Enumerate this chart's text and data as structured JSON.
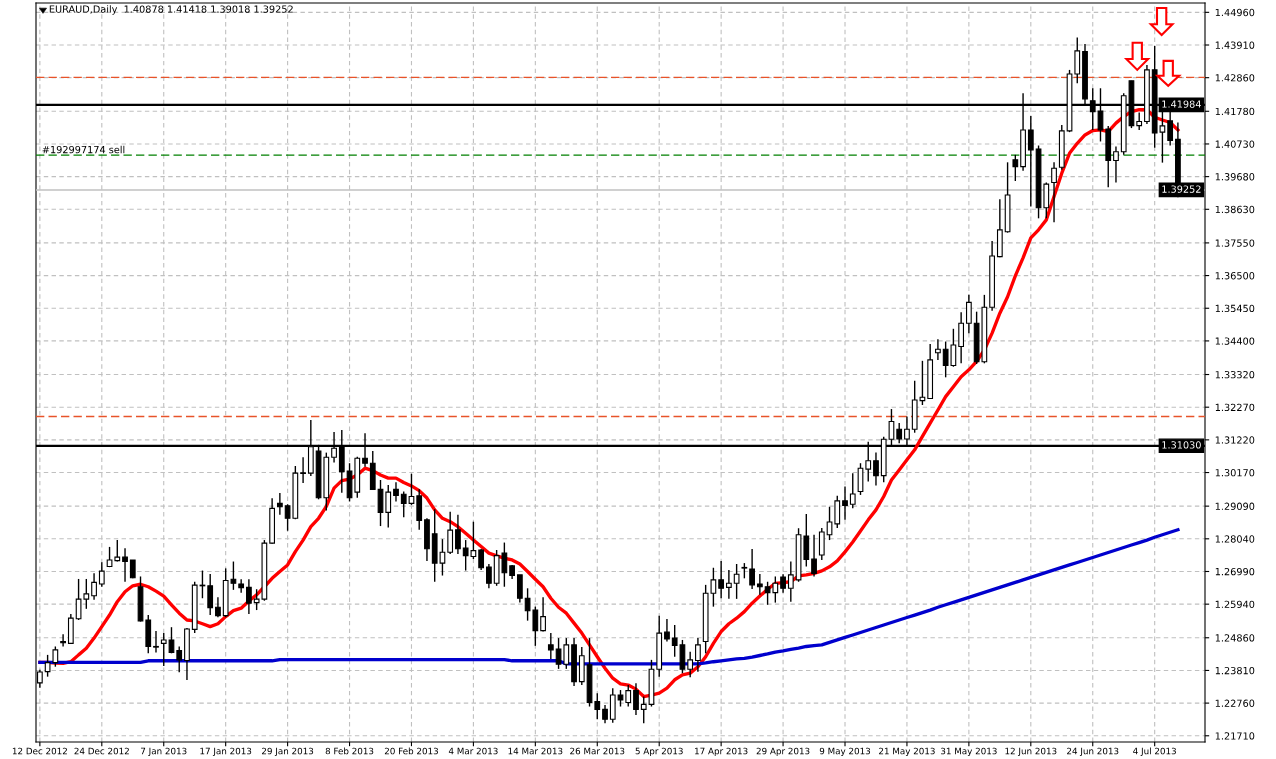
{
  "chart_data": {
    "type": "candlestick",
    "title": "EURAUD,Daily  1.40878 1.41418 1.39018 1.39252",
    "categories": [
      "12 Dec 2012",
      null,
      null,
      null,
      null,
      null,
      null,
      null,
      "24 Dec 2012",
      null,
      null,
      null,
      null,
      null,
      null,
      null,
      "7 Jan 2013",
      null,
      null,
      null,
      null,
      null,
      null,
      null,
      "17 Jan 2013",
      null,
      null,
      null,
      null,
      null,
      null,
      null,
      "29 Jan 2013",
      null,
      null,
      null,
      null,
      null,
      null,
      null,
      "8 Feb 2013",
      null,
      null,
      null,
      null,
      null,
      null,
      null,
      "20 Feb 2013",
      null,
      null,
      null,
      null,
      null,
      null,
      null,
      "4 Mar 2013",
      null,
      null,
      null,
      null,
      null,
      null,
      null,
      "14 Mar 2013",
      null,
      null,
      null,
      null,
      null,
      null,
      null,
      "26 Mar 2013",
      null,
      null,
      null,
      null,
      null,
      null,
      null,
      "5 Apr 2013",
      null,
      null,
      null,
      null,
      null,
      null,
      null,
      "17 Apr 2013",
      null,
      null,
      null,
      null,
      null,
      null,
      null,
      "29 Apr 2013",
      null,
      null,
      null,
      null,
      null,
      null,
      null,
      "9 May 2013",
      null,
      null,
      null,
      null,
      null,
      null,
      null,
      "21 May 2013",
      null,
      null,
      null,
      null,
      null,
      null,
      null,
      "31 May 2013",
      null,
      null,
      null,
      null,
      null,
      null,
      null,
      "12 Jun 2013",
      null,
      null,
      null,
      null,
      null,
      null,
      null,
      "24 Jun 2013",
      null,
      null,
      null,
      null,
      null,
      null,
      null,
      "4 Jul 2013",
      null,
      null,
      null
    ],
    "ohlc": [
      [
        1.2341,
        1.2383,
        1.2325,
        1.2376
      ],
      [
        1.2377,
        1.2431,
        1.2361,
        1.2406
      ],
      [
        1.2406,
        1.2458,
        1.2393,
        1.2447
      ],
      [
        1.2474,
        1.2497,
        1.2458,
        1.247
      ],
      [
        1.2468,
        1.2562,
        1.2466,
        1.2549
      ],
      [
        1.2547,
        1.2675,
        1.2543,
        1.261
      ],
      [
        1.261,
        1.2675,
        1.2579,
        1.2627
      ],
      [
        1.2621,
        1.2693,
        1.2608,
        1.2664
      ],
      [
        1.2659,
        1.2729,
        1.265,
        1.27
      ],
      [
        1.2715,
        1.2778,
        1.2713,
        1.2736
      ],
      [
        1.2734,
        1.28,
        1.2731,
        1.2745
      ],
      [
        1.2745,
        1.2774,
        1.2666,
        1.2731
      ],
      [
        1.2736,
        1.2736,
        1.2677,
        1.2679
      ],
      [
        1.265,
        1.2683,
        1.2538,
        1.254
      ],
      [
        1.2543,
        1.2559,
        1.2436,
        1.2458
      ],
      [
        1.2458,
        1.2508,
        1.2439,
        1.2456
      ],
      [
        1.2468,
        1.2501,
        1.2395,
        1.2479
      ],
      [
        1.2479,
        1.252,
        1.2436,
        1.2439
      ],
      [
        1.2445,
        1.2458,
        1.2375,
        1.2415
      ],
      [
        1.2413,
        1.2517,
        1.235,
        1.2514
      ],
      [
        1.2513,
        1.2666,
        1.2501,
        1.2655
      ],
      [
        1.2653,
        1.2702,
        1.2613,
        1.2655
      ],
      [
        1.2653,
        1.2691,
        1.2559,
        1.2583
      ],
      [
        1.2584,
        1.2616,
        1.2552,
        1.2557
      ],
      [
        1.2557,
        1.2709,
        1.2552,
        1.267
      ],
      [
        1.2674,
        1.2731,
        1.264,
        1.2661
      ],
      [
        1.2659,
        1.2674,
        1.2631,
        1.2647
      ],
      [
        1.2648,
        1.2674,
        1.2562,
        1.2597
      ],
      [
        1.2599,
        1.2642,
        1.2575,
        1.261
      ],
      [
        1.261,
        1.28,
        1.2605,
        1.279
      ],
      [
        1.279,
        1.2934,
        1.2788,
        1.2902
      ],
      [
        1.2918,
        1.2951,
        1.2881,
        1.2907
      ],
      [
        1.291,
        1.2915,
        1.283,
        1.287
      ],
      [
        1.287,
        1.3038,
        1.2867,
        1.3015
      ],
      [
        1.3016,
        1.3066,
        1.2983,
        1.3014
      ],
      [
        1.3015,
        1.3186,
        1.3006,
        1.31
      ],
      [
        1.3086,
        1.3106,
        1.2931,
        1.2936
      ],
      [
        1.2936,
        1.3081,
        1.2895,
        1.3066
      ],
      [
        1.3066,
        1.3147,
        1.3049,
        1.3095
      ],
      [
        1.31,
        1.3154,
        1.2952,
        1.302
      ],
      [
        1.3022,
        1.3047,
        1.2924,
        1.2936
      ],
      [
        1.2954,
        1.3068,
        1.2936,
        1.3063
      ],
      [
        1.3063,
        1.3143,
        1.3036,
        1.3047
      ],
      [
        1.3047,
        1.3086,
        1.2961,
        1.2963
      ],
      [
        1.2963,
        1.2993,
        1.2845,
        1.2889
      ],
      [
        1.2889,
        1.2977,
        1.284,
        1.2954
      ],
      [
        1.2963,
        1.2986,
        1.2924,
        1.2943
      ],
      [
        1.2947,
        1.2956,
        1.2873,
        1.2918
      ],
      [
        1.2918,
        1.3013,
        1.2913,
        1.294
      ],
      [
        1.2942,
        1.2963,
        1.2833,
        1.2863
      ],
      [
        1.2865,
        1.287,
        1.2733,
        1.2772
      ],
      [
        1.282,
        1.2899,
        1.2666,
        1.2726
      ],
      [
        1.2726,
        1.2803,
        1.2686,
        1.2761
      ],
      [
        1.2761,
        1.2891,
        1.2755,
        1.2832
      ],
      [
        1.2833,
        1.2881,
        1.2755,
        1.2772
      ],
      [
        1.2774,
        1.28,
        1.2702,
        1.275
      ],
      [
        1.2747,
        1.2859,
        1.2739,
        1.2766
      ],
      [
        1.2768,
        1.2771,
        1.2704,
        1.2711
      ],
      [
        1.2713,
        1.2723,
        1.2645,
        1.2661
      ],
      [
        1.2661,
        1.2768,
        1.2653,
        1.275
      ],
      [
        1.2758,
        1.2792,
        1.265,
        1.2695
      ],
      [
        1.2717,
        1.272,
        1.2675,
        1.2686
      ],
      [
        1.2688,
        1.2688,
        1.2599,
        1.2613
      ],
      [
        1.2613,
        1.2645,
        1.2541,
        1.2573
      ],
      [
        1.2575,
        1.2586,
        1.246,
        1.2509
      ],
      [
        1.2509,
        1.2616,
        1.2506,
        1.2554
      ],
      [
        1.2463,
        1.2501,
        1.2418,
        1.2447
      ],
      [
        1.245,
        1.2485,
        1.2386,
        1.2401
      ],
      [
        1.2401,
        1.2485,
        1.2386,
        1.2463
      ],
      [
        1.2463,
        1.2485,
        1.2331,
        1.2345
      ],
      [
        1.2345,
        1.2456,
        1.2334,
        1.2428
      ],
      [
        1.2399,
        1.2485,
        1.2265,
        1.2278
      ],
      [
        1.2281,
        1.2308,
        1.2224,
        1.2256
      ],
      [
        1.2256,
        1.227,
        1.2211,
        1.2224
      ],
      [
        1.2224,
        1.2324,
        1.2213,
        1.2302
      ],
      [
        1.2302,
        1.2318,
        1.2265,
        1.2286
      ],
      [
        1.2278,
        1.2334,
        1.2265,
        1.2316
      ],
      [
        1.2316,
        1.234,
        1.2238,
        1.2256
      ],
      [
        1.2256,
        1.2297,
        1.2211,
        1.2272
      ],
      [
        1.2272,
        1.2415,
        1.2265,
        1.2385
      ],
      [
        1.2385,
        1.2557,
        1.2361,
        1.2501
      ],
      [
        1.2504,
        1.2546,
        1.2474,
        1.2482
      ],
      [
        1.2485,
        1.2527,
        1.2425,
        1.2461
      ],
      [
        1.2463,
        1.2479,
        1.2372,
        1.2385
      ],
      [
        1.2385,
        1.2441,
        1.2359,
        1.2415
      ],
      [
        1.2413,
        1.2485,
        1.2377,
        1.2463
      ],
      [
        1.2474,
        1.2656,
        1.2436,
        1.2629
      ],
      [
        1.2629,
        1.2711,
        1.2586,
        1.2672
      ],
      [
        1.2672,
        1.2733,
        1.2613,
        1.2645
      ],
      [
        1.2648,
        1.2704,
        1.2611,
        1.2661
      ],
      [
        1.2661,
        1.2723,
        1.2611,
        1.269
      ],
      [
        1.2712,
        1.2726,
        1.2677,
        1.271
      ],
      [
        1.2707,
        1.2771,
        1.2643,
        1.2656
      ],
      [
        1.2659,
        1.2691,
        1.2624,
        1.265
      ],
      [
        1.265,
        1.2666,
        1.2592,
        1.2631
      ],
      [
        1.2631,
        1.2683,
        1.2599,
        1.2661
      ],
      [
        1.2681,
        1.269,
        1.2631,
        1.2645
      ],
      [
        1.2645,
        1.2731,
        1.2602,
        1.2688
      ],
      [
        1.2672,
        1.2838,
        1.2666,
        1.2817
      ],
      [
        1.2813,
        1.2884,
        1.2715,
        1.2738
      ],
      [
        1.2739,
        1.2817,
        1.2683,
        1.2693
      ],
      [
        1.2752,
        1.2839,
        1.2736,
        1.2826
      ],
      [
        1.2817,
        1.2907,
        1.28,
        1.2858
      ],
      [
        1.2852,
        1.2942,
        1.2839,
        1.2926
      ],
      [
        1.2926,
        1.2972,
        1.2865,
        1.2911
      ],
      [
        1.2915,
        1.3015,
        1.2902,
        1.2948
      ],
      [
        1.2956,
        1.3047,
        1.2945,
        1.3031
      ],
      [
        1.3028,
        1.3116,
        1.2988,
        1.3055
      ],
      [
        1.3055,
        1.3081,
        1.2975,
        1.3007
      ],
      [
        1.3007,
        1.3132,
        1.2986,
        1.3124
      ],
      [
        1.3124,
        1.3221,
        1.31,
        1.3181
      ],
      [
        1.3156,
        1.3176,
        1.3111,
        1.3125
      ],
      [
        1.3125,
        1.3197,
        1.31,
        1.3156
      ],
      [
        1.3156,
        1.3312,
        1.3145,
        1.325
      ],
      [
        1.3248,
        1.3376,
        1.3234,
        1.3259
      ],
      [
        1.3255,
        1.343,
        1.3253,
        1.3379
      ],
      [
        1.3402,
        1.3445,
        1.3379,
        1.3413
      ],
      [
        1.3413,
        1.3438,
        1.3323,
        1.3361
      ],
      [
        1.3361,
        1.3479,
        1.3357,
        1.3427
      ],
      [
        1.3422,
        1.3532,
        1.3368,
        1.3497
      ],
      [
        1.3497,
        1.3588,
        1.3465,
        1.3564
      ],
      [
        1.3497,
        1.3534,
        1.3366,
        1.3373
      ],
      [
        1.3373,
        1.3588,
        1.3368,
        1.3548
      ],
      [
        1.3548,
        1.3761,
        1.3537,
        1.3713
      ],
      [
        1.3711,
        1.3895,
        1.3709,
        1.3797
      ],
      [
        1.3791,
        1.4014,
        1.3788,
        1.3909
      ],
      [
        1.4022,
        1.4038,
        1.3954,
        1.4
      ],
      [
        1.4,
        1.4236,
        1.3987,
        1.4118
      ],
      [
        1.4118,
        1.4163,
        1.3872,
        1.4054
      ],
      [
        1.4057,
        1.4068,
        1.3834,
        1.3868
      ],
      [
        1.3868,
        1.3949,
        1.3834,
        1.3944
      ],
      [
        1.3949,
        1.4014,
        1.3821,
        1.3995
      ],
      [
        1.3998,
        1.4134,
        1.399,
        1.4115
      ],
      [
        1.4115,
        1.4311,
        1.4111,
        1.4298
      ],
      [
        1.4298,
        1.4415,
        1.4268,
        1.4372
      ],
      [
        1.437,
        1.4394,
        1.4201,
        1.4218
      ],
      [
        1.4212,
        1.4252,
        1.4118,
        1.4177
      ],
      [
        1.4179,
        1.4252,
        1.4081,
        1.4118
      ],
      [
        1.4121,
        1.4131,
        1.3934,
        1.402
      ],
      [
        1.402,
        1.4065,
        1.3949,
        1.4048
      ],
      [
        1.4048,
        1.4236,
        1.4038,
        1.4228
      ],
      [
        1.4276,
        1.4276,
        1.4124,
        1.4132
      ],
      [
        1.4132,
        1.4174,
        1.4118,
        1.4145
      ],
      [
        1.4145,
        1.4327,
        1.4137,
        1.4311
      ],
      [
        1.4311,
        1.4388,
        1.4061,
        1.4108
      ],
      [
        1.4111,
        1.4193,
        1.4013,
        1.4131
      ],
      [
        1.4147,
        1.4177,
        1.4068,
        1.4084
      ],
      [
        1.40878,
        1.41418,
        1.39018,
        1.39252
      ]
    ],
    "series": [
      {
        "type": "line",
        "color": "#ff0000",
        "values": [
          1.2407,
          1.2407,
          1.2405,
          1.2404,
          1.2409,
          1.2431,
          1.2452,
          1.2485,
          1.2522,
          1.2559,
          1.2602,
          1.2634,
          1.2653,
          1.2658,
          1.265,
          1.2636,
          1.262,
          1.2592,
          1.2565,
          1.2543,
          1.254,
          1.2531,
          1.2522,
          1.2531,
          1.2554,
          1.2573,
          1.2581,
          1.2604,
          1.2624,
          1.265,
          1.2677,
          1.2699,
          1.272,
          1.2763,
          1.28,
          1.2843,
          1.287,
          1.2908,
          1.2967,
          1.2991,
          1.2996,
          1.3009,
          1.3031,
          1.3023,
          1.3009,
          1.2999,
          1.2999,
          1.2985,
          1.2974,
          1.2959,
          1.2935,
          1.2897,
          1.287,
          1.2859,
          1.2843,
          1.2822,
          1.28,
          1.2779,
          1.2758,
          1.2749,
          1.2742,
          1.2736,
          1.2723,
          1.2699,
          1.2674,
          1.265,
          1.2613,
          1.2584,
          1.2565,
          1.2533,
          1.2501,
          1.2463,
          1.2425,
          1.2388,
          1.2356,
          1.2338,
          1.2334,
          1.2321,
          1.2297,
          1.2302,
          1.2308,
          1.2324,
          1.2351,
          1.2367,
          1.2372,
          1.2393,
          1.2425,
          1.2468,
          1.2506,
          1.2531,
          1.2549,
          1.257,
          1.2597,
          1.262,
          1.2642,
          1.2661,
          1.2663,
          1.2666,
          1.2685,
          1.2688,
          1.2693,
          1.2701,
          1.2714,
          1.2733,
          1.2762,
          1.2794,
          1.2829,
          1.2865,
          1.2897,
          1.294,
          1.2993,
          1.3025,
          1.3058,
          1.309,
          1.3133,
          1.3176,
          1.3218,
          1.3261,
          1.3293,
          1.3325,
          1.3347,
          1.3374,
          1.3411,
          1.3465,
          1.3529,
          1.3582,
          1.3649,
          1.3707,
          1.3771,
          1.3797,
          1.3829,
          1.3904,
          1.3979,
          1.4043,
          1.4075,
          1.4102,
          1.4116,
          1.4118,
          1.4113,
          1.414,
          1.4161,
          1.4177,
          1.4183,
          1.4183,
          1.4159,
          1.415,
          1.4142,
          1.4118
        ]
      },
      {
        "type": "line",
        "color": "#0000cd",
        "values": [
          1.2407,
          1.2407,
          1.2407,
          1.2407,
          1.2407,
          1.2407,
          1.2407,
          1.2407,
          1.2407,
          1.2407,
          1.2407,
          1.2407,
          1.2407,
          1.2407,
          1.2412,
          1.2412,
          1.2412,
          1.2412,
          1.2412,
          1.2412,
          1.2412,
          1.2412,
          1.2412,
          1.2412,
          1.2412,
          1.2412,
          1.2412,
          1.2412,
          1.2412,
          1.2412,
          1.2412,
          1.2416,
          1.2416,
          1.2416,
          1.2416,
          1.2416,
          1.2416,
          1.2416,
          1.2416,
          1.2416,
          1.2416,
          1.2416,
          1.2416,
          1.2416,
          1.2416,
          1.2416,
          1.2416,
          1.2416,
          1.2416,
          1.2416,
          1.2416,
          1.2416,
          1.2416,
          1.2416,
          1.2416,
          1.2416,
          1.2416,
          1.2416,
          1.2416,
          1.2416,
          1.2416,
          1.2412,
          1.2412,
          1.2412,
          1.2412,
          1.2412,
          1.2412,
          1.2412,
          1.2402,
          1.2402,
          1.2402,
          1.2402,
          1.2402,
          1.2402,
          1.2402,
          1.2402,
          1.2402,
          1.2402,
          1.2402,
          1.2402,
          1.2402,
          1.2402,
          1.2402,
          1.2402,
          1.2402,
          1.2402,
          1.2405,
          1.2409,
          1.2412,
          1.2415,
          1.2418,
          1.242,
          1.2424,
          1.2429,
          1.2434,
          1.244,
          1.2444,
          1.2449,
          1.2453,
          1.2458,
          1.2461,
          1.2463,
          1.2471,
          1.2479,
          1.2487,
          1.2495,
          1.2503,
          1.2511,
          1.2519,
          1.2527,
          1.2535,
          1.2543,
          1.2551,
          1.2559,
          1.2567,
          1.2575,
          1.2584,
          1.2592,
          1.26,
          1.2608,
          1.2616,
          1.2624,
          1.2632,
          1.264,
          1.2648,
          1.2656,
          1.2664,
          1.2672,
          1.268,
          1.2688,
          1.2696,
          1.2704,
          1.2712,
          1.272,
          1.2728,
          1.2736,
          1.2744,
          1.2752,
          1.276,
          1.2768,
          1.2776,
          1.2784,
          1.2792,
          1.28,
          1.2809,
          1.2817,
          1.2825,
          1.2833
        ]
      }
    ],
    "ylim": [
      1.2151,
      1.4526
    ],
    "yticks": [
      {
        "value": 1.4496,
        "label": "1.44960"
      },
      {
        "value": 1.4391,
        "label": "1.43910"
      },
      {
        "value": 1.4286,
        "label": "1.42860"
      },
      {
        "value": 1.4178,
        "label": "1.41780"
      },
      {
        "value": 1.4073,
        "label": "1.40730"
      },
      {
        "value": 1.3968,
        "label": "1.39680"
      },
      {
        "value": 1.3863,
        "label": "1.38630"
      },
      {
        "value": 1.3755,
        "label": "1.37550"
      },
      {
        "value": 1.365,
        "label": "1.36500"
      },
      {
        "value": 1.3545,
        "label": "1.35450"
      },
      {
        "value": 1.344,
        "label": "1.34400"
      },
      {
        "value": 1.3332,
        "label": "1.33320"
      },
      {
        "value": 1.3227,
        "label": "1.32270"
      },
      {
        "value": 1.3122,
        "label": "1.31220"
      },
      {
        "value": 1.3017,
        "label": "1.30170"
      },
      {
        "value": 1.2909,
        "label": "1.29090"
      },
      {
        "value": 1.2804,
        "label": "1.28040"
      },
      {
        "value": 1.2699,
        "label": "1.26990"
      },
      {
        "value": 1.2594,
        "label": "1.25940"
      },
      {
        "value": 1.2486,
        "label": "1.24860"
      },
      {
        "value": 1.2381,
        "label": "1.23810"
      },
      {
        "value": 1.2276,
        "label": "1.22760"
      },
      {
        "value": 1.2171,
        "label": "1.21710"
      }
    ],
    "ref_lines": [
      {
        "axis": "y",
        "value": 1.41984,
        "label": "1.41984",
        "color": "#000000",
        "line_style": "solid"
      },
      {
        "axis": "y",
        "value": 1.3103,
        "label": "1.31030",
        "color": "#000000",
        "line_style": "solid"
      },
      {
        "axis": "y",
        "value": 1.39252,
        "label": "1.39252",
        "color": "#c0c0c0",
        "line_style": "solid"
      },
      {
        "axis": "y",
        "value": 1.4287,
        "color": "#e8532a",
        "line_style": "dashed"
      },
      {
        "axis": "y",
        "value": 1.4037,
        "label": "#192997174 sell",
        "color": "#008000",
        "line_style": "dashed"
      },
      {
        "axis": "y",
        "value": 1.3197,
        "color": "#e8532a",
        "line_style": "dashed"
      }
    ],
    "grid": true
  }
}
